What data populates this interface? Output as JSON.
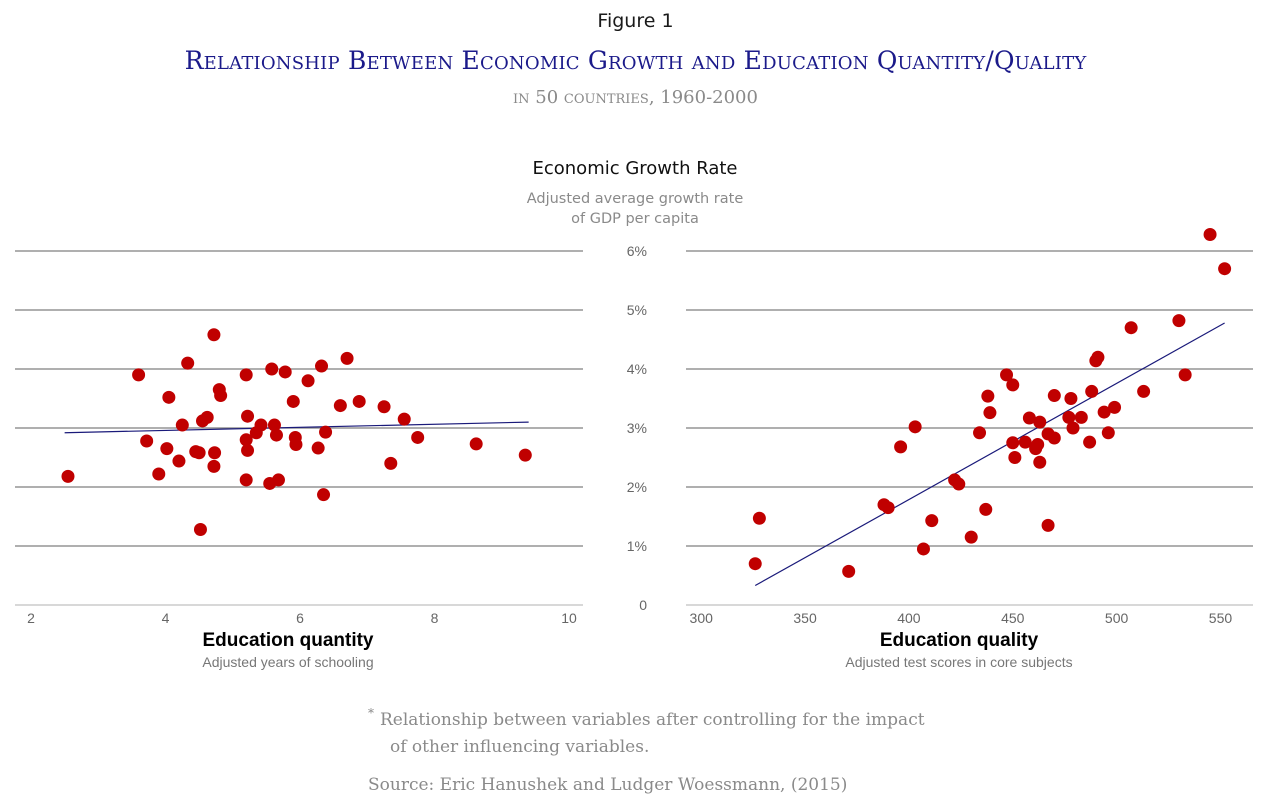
{
  "header": {
    "figure_label": "Figure 1",
    "title": "Relationship Between Economic Growth and Education Quantity/Quality",
    "subtitle": "in 50 countries, 1960-2000"
  },
  "y_axis": {
    "title": "Economic Growth Rate",
    "sub_line1": "Adjusted average growth rate",
    "sub_line2": "of GDP per capita"
  },
  "footer": {
    "footnote_marker": "*",
    "footnote_line1": "Relationship between variables after controlling for the impact",
    "footnote_line2": "of other influencing variables.",
    "source": "Source: Eric Hanushek and Ludger Woessmann, (2015)"
  },
  "colors": {
    "dot": "#c00000",
    "trend": "#1a1a7a",
    "grid": "#7f7f7f",
    "title": "#1b1a8a"
  },
  "chart_data": [
    {
      "type": "scatter",
      "xlabel": "Education quantity",
      "xsublabel": "Adjusted years of schooling",
      "ylabel": "Economic Growth Rate",
      "xlim": [
        2,
        10
      ],
      "ylim": [
        0,
        6
      ],
      "xticks": [
        2,
        4,
        6,
        8,
        10
      ],
      "xtick_labels": [
        "2",
        "4",
        "6",
        "8",
        "10"
      ],
      "yticks": [
        1,
        2,
        3,
        4,
        5,
        6
      ],
      "grid": true,
      "trendline": {
        "x": [
          2.5,
          9.4
        ],
        "y": [
          2.92,
          3.1
        ]
      },
      "points": [
        [
          2.55,
          2.18
        ],
        [
          3.6,
          3.9
        ],
        [
          3.72,
          2.78
        ],
        [
          3.9,
          2.22
        ],
        [
          4.02,
          2.65
        ],
        [
          4.05,
          3.52
        ],
        [
          4.2,
          2.44
        ],
        [
          4.25,
          3.05
        ],
        [
          4.33,
          4.1
        ],
        [
          4.45,
          2.6
        ],
        [
          4.5,
          2.58
        ],
        [
          4.52,
          1.28
        ],
        [
          4.55,
          3.12
        ],
        [
          4.62,
          3.18
        ],
        [
          4.72,
          4.58
        ],
        [
          4.72,
          2.35
        ],
        [
          4.73,
          2.58
        ],
        [
          4.8,
          3.65
        ],
        [
          4.82,
          3.55
        ],
        [
          5.2,
          3.9
        ],
        [
          5.2,
          2.8
        ],
        [
          5.2,
          2.12
        ],
        [
          5.22,
          3.2
        ],
        [
          5.22,
          2.62
        ],
        [
          5.35,
          2.92
        ],
        [
          5.42,
          3.05
        ],
        [
          5.55,
          2.06
        ],
        [
          5.58,
          4.0
        ],
        [
          5.62,
          3.05
        ],
        [
          5.65,
          2.88
        ],
        [
          5.68,
          2.12
        ],
        [
          5.78,
          3.95
        ],
        [
          5.9,
          3.45
        ],
        [
          5.93,
          2.84
        ],
        [
          5.94,
          2.72
        ],
        [
          6.12,
          3.8
        ],
        [
          6.27,
          2.66
        ],
        [
          6.32,
          4.05
        ],
        [
          6.35,
          1.87
        ],
        [
          6.38,
          2.93
        ],
        [
          6.6,
          3.38
        ],
        [
          6.7,
          4.18
        ],
        [
          6.88,
          3.45
        ],
        [
          7.25,
          3.36
        ],
        [
          7.35,
          2.4
        ],
        [
          7.55,
          3.15
        ],
        [
          7.75,
          2.84
        ],
        [
          8.62,
          2.73
        ],
        [
          9.35,
          2.54
        ]
      ]
    },
    {
      "type": "scatter",
      "xlabel": "Education quality",
      "xsublabel": "Adjusted test scores in core subjects",
      "ylabel": "Economic Growth Rate",
      "xlim": [
        297,
        557
      ],
      "ylim": [
        0,
        6
      ],
      "xticks": [
        300,
        350,
        400,
        450,
        500,
        550
      ],
      "xtick_labels": [
        "300",
        "350",
        "400",
        "450",
        "500",
        "550"
      ],
      "yticks": [
        0,
        1,
        2,
        3,
        4,
        5,
        6
      ],
      "ytick_labels": [
        "0",
        "1%",
        "2%",
        "3%",
        "4%",
        "5%",
        "6%"
      ],
      "grid": true,
      "trendline": {
        "x": [
          326,
          552
        ],
        "y": [
          0.33,
          4.78
        ]
      },
      "points": [
        [
          326,
          0.7
        ],
        [
          328,
          1.47
        ],
        [
          371,
          0.57
        ],
        [
          388,
          1.7
        ],
        [
          390,
          1.65
        ],
        [
          396,
          2.68
        ],
        [
          403,
          3.02
        ],
        [
          407,
          0.95
        ],
        [
          411,
          1.43
        ],
        [
          422,
          2.12
        ],
        [
          424,
          2.05
        ],
        [
          430,
          1.15
        ],
        [
          434,
          2.92
        ],
        [
          437,
          1.62
        ],
        [
          438,
          3.54
        ],
        [
          439,
          3.26
        ],
        [
          447,
          3.9
        ],
        [
          450,
          3.73
        ],
        [
          450,
          2.75
        ],
        [
          451,
          2.5
        ],
        [
          456,
          2.76
        ],
        [
          458,
          3.17
        ],
        [
          461,
          2.65
        ],
        [
          462,
          2.72
        ],
        [
          463,
          3.1
        ],
        [
          463,
          2.42
        ],
        [
          467,
          1.35
        ],
        [
          467,
          2.9
        ],
        [
          470,
          2.83
        ],
        [
          470,
          3.55
        ],
        [
          477,
          3.18
        ],
        [
          478,
          3.5
        ],
        [
          479,
          3.0
        ],
        [
          483,
          3.18
        ],
        [
          487,
          2.76
        ],
        [
          488,
          3.62
        ],
        [
          490,
          4.14
        ],
        [
          491,
          4.2
        ],
        [
          494,
          3.27
        ],
        [
          496,
          2.92
        ],
        [
          499,
          3.35
        ],
        [
          507,
          4.7
        ],
        [
          513,
          3.62
        ],
        [
          530,
          4.82
        ],
        [
          533,
          3.9
        ],
        [
          545,
          6.28
        ],
        [
          552,
          5.7
        ]
      ]
    }
  ]
}
